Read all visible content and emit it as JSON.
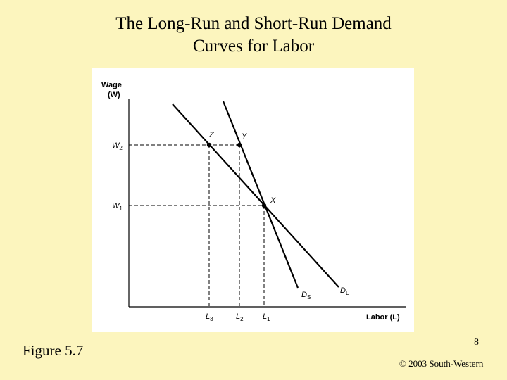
{
  "slide": {
    "title_line1": "The Long-Run and Short-Run Demand",
    "title_line2": "Curves for Labor",
    "figure_label": "Figure 5.7",
    "page_number": "8",
    "copyright": "© 2003 South-Western"
  },
  "diagram": {
    "y_axis_label": "Wage",
    "y_axis_symbol": "(W)",
    "x_axis_label": "Labor (L)",
    "wage_levels": [
      {
        "base": "W",
        "sub": "2"
      },
      {
        "base": "W",
        "sub": "1"
      }
    ],
    "labor_levels": [
      {
        "base": "L",
        "sub": "3"
      },
      {
        "base": "L",
        "sub": "2"
      },
      {
        "base": "L",
        "sub": "1"
      }
    ],
    "points": [
      "Z",
      "Y",
      "X"
    ],
    "curves": [
      {
        "base": "D",
        "sub": "S"
      },
      {
        "base": "D",
        "sub": "L"
      }
    ],
    "colors": {
      "background": "#fcf5be",
      "figure_bg": "#ffffff",
      "ink": "#000000"
    }
  }
}
